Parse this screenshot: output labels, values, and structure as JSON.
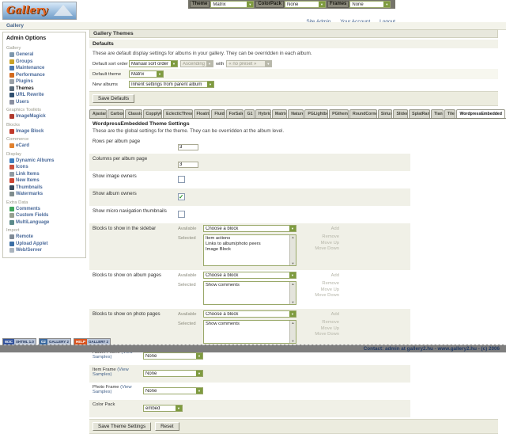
{
  "topbar": {
    "theme_label": "Theme",
    "theme_value": "Matrix",
    "colorpack_label": "ColorPack",
    "colorpack_value": "None",
    "frames_label": "Frames",
    "frames_value": "None"
  },
  "header": {
    "logo_text": "Gallery",
    "links": [
      "Site Admin",
      "Your Account",
      "Logout"
    ],
    "breadcrumb": "Gallery"
  },
  "sidebar": {
    "title": "Admin Options",
    "sections": [
      {
        "label": "Gallery",
        "items": [
          {
            "label": "General",
            "color": "#7d97ad"
          },
          {
            "label": "Groups",
            "color": "#c9a227"
          },
          {
            "label": "Maintenance",
            "color": "#4a78b0"
          },
          {
            "label": "Performance",
            "color": "#d2691e"
          },
          {
            "label": "Plugins",
            "color": "#9aa0a6"
          },
          {
            "label": "Themes",
            "color": "#5a6b7a",
            "active": true
          },
          {
            "label": "URL Rewrite",
            "color": "#2f4f6f"
          },
          {
            "label": "Users",
            "color": "#8a8fa0"
          }
        ]
      },
      {
        "label": "Graphics Toolkits",
        "items": [
          {
            "label": "ImageMagick",
            "color": "#b03a2e"
          }
        ]
      },
      {
        "label": "Blocks",
        "items": [
          {
            "label": "Image Block",
            "color": "#c0392b"
          }
        ]
      },
      {
        "label": "Commerce",
        "items": [
          {
            "label": "eCard",
            "color": "#e0812f"
          }
        ]
      },
      {
        "label": "Display",
        "items": [
          {
            "label": "Dynamic Albums",
            "color": "#3f7fbf"
          },
          {
            "label": "Icons",
            "color": "#c94f3d"
          },
          {
            "label": "Link Items",
            "color": "#8f9aa3"
          },
          {
            "label": "New Items",
            "color": "#cc4433"
          },
          {
            "label": "Thumbnails",
            "color": "#34495e"
          },
          {
            "label": "Watermarks",
            "color": "#7f8c8d"
          }
        ]
      },
      {
        "label": "Extra Data",
        "items": [
          {
            "label": "Comments",
            "color": "#3fa45b"
          },
          {
            "label": "Custom Fields",
            "color": "#95a08f"
          },
          {
            "label": "MultiLanguage",
            "color": "#5b8a8a"
          }
        ]
      },
      {
        "label": "Import",
        "items": [
          {
            "label": "Remote",
            "color": "#808b96"
          },
          {
            "label": "Upload Applet",
            "color": "#3a6ea5"
          },
          {
            "label": "Web/Server",
            "color": "#aab4be"
          }
        ]
      }
    ]
  },
  "main": {
    "page_title": "Gallery Themes",
    "defaults": {
      "title": "Defaults",
      "description": "These are default display settings for albums in your gallery. They can be overridden in each album.",
      "sort_label": "Default sort order",
      "sort_value": "Manual sort order",
      "sort_direction": "Ascending",
      "with_label": "with",
      "preset_value": "« no preset »",
      "theme_label": "Default theme",
      "theme_value": "Matrix",
      "albums_label": "New albums",
      "albums_value": "Inherit settings from parent album",
      "save_button": "Save Defaults"
    },
    "tabs": {
      "active": "WordpressEmbedded",
      "items": [
        "Ajaxian",
        "Carbon",
        "Classic",
        "CopplyFt",
        "EclecticThreads",
        "Floatrix",
        "Fluid",
        "ForSale",
        "G1",
        "Hybrid",
        "Matrix",
        "Nature",
        "PGLightbox",
        "PGtheme",
        "RoundCorners",
        "Siriux",
        "Slider",
        "SplatRang",
        "Tian",
        "Tile",
        "WordpressEmbedded"
      ]
    },
    "theme_settings": {
      "title": "WordpressEmbedded Theme Settings",
      "description": "These are the global settings for the theme. They can be overridden at the album level.",
      "available_label": "Available",
      "selected_label": "Selected",
      "choose_block": "Choose a block",
      "add_label": "Add",
      "actions": [
        "Remove",
        "Move Up",
        "Move Down"
      ],
      "rows": [
        {
          "label": "Rows per album page",
          "type": "text",
          "value": "3"
        },
        {
          "label": "Columns per album page",
          "type": "text",
          "value": "3"
        },
        {
          "label": "Show image owners",
          "type": "checkbox",
          "checked": false
        },
        {
          "label": "Show album owners",
          "type": "checkbox",
          "checked": true
        },
        {
          "label": "Show micro navigation thumbnails",
          "type": "checkbox",
          "checked": false
        },
        {
          "label": "Blocks to show in the sidebar",
          "type": "blocks",
          "selected_items": [
            "Item actions",
            "Links to album/photo peers",
            "Image Block"
          ]
        },
        {
          "label": "Blocks to show on album pages",
          "type": "blocks",
          "selected_items": [
            "Show comments"
          ]
        },
        {
          "label": "Blocks to show on photo pages",
          "type": "blocks",
          "selected_items": [
            "Show comments"
          ]
        },
        {
          "label": "Album Frame",
          "link": "(View Samples)",
          "type": "select",
          "value": "None",
          "narrow": true,
          "width": 76
        },
        {
          "label": "Item Frame",
          "link": "(View Samples)",
          "type": "select",
          "value": "None",
          "narrow": true,
          "width": 76
        },
        {
          "label": "Photo Frame",
          "link": "(View Samples)",
          "type": "select",
          "value": "None",
          "narrow": true,
          "width": 76
        },
        {
          "label": "Color Pack",
          "type": "select",
          "value": "embed",
          "narrow": true,
          "width": 50
        }
      ],
      "save_button": "Save Theme Settings",
      "reset_button": "Reset"
    }
  },
  "footer": {
    "badges": [
      {
        "left": "W3C",
        "right": "XHTML 1.0",
        "left_color": "#33539c"
      },
      {
        "left": "G2",
        "right": "GALLERY 2",
        "left_color": "#3b6aa0"
      },
      {
        "left": "HELP",
        "right": "GALLERY 2",
        "left_color": "#d9531e"
      }
    ],
    "contact": "Contact: admin at gallery2.hu - www.gallery2.hu - (c) 2006"
  }
}
